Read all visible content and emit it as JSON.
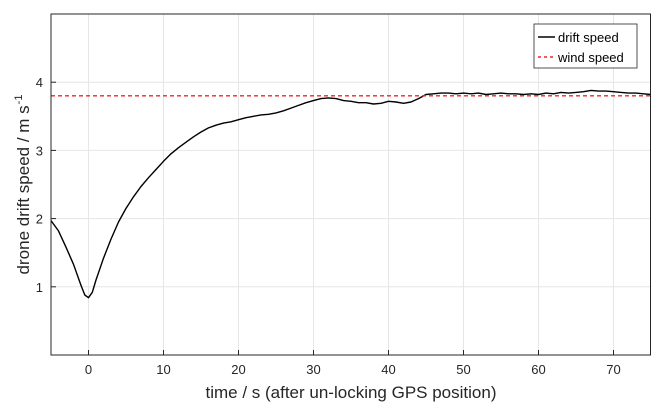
{
  "chart_data": {
    "type": "line",
    "title": "",
    "xlabel": "time / s (after un-locking GPS position)",
    "ylabel_main": "drone drift speed / m s",
    "ylabel_superscript": "-1",
    "xlim": [
      -5,
      75
    ],
    "ylim": [
      0,
      5
    ],
    "xticks": [
      0,
      10,
      20,
      30,
      40,
      50,
      60,
      70
    ],
    "yticks": [
      1,
      2,
      3,
      4
    ],
    "grid": true,
    "legend_position": "top-right",
    "series": [
      {
        "name": "drift speed",
        "color": "#000000",
        "style": "solid",
        "x": [
          -5,
          -4,
          -3,
          -2,
          -1,
          -0.5,
          0,
          0.5,
          1,
          2,
          3,
          4,
          5,
          6,
          7,
          8,
          9,
          10,
          11,
          12,
          13,
          14,
          15,
          16,
          17,
          18,
          19,
          20,
          21,
          22,
          23,
          24,
          25,
          26,
          27,
          28,
          29,
          30,
          31,
          32,
          33,
          34,
          35,
          36,
          37,
          38,
          39,
          40,
          41,
          42,
          43,
          44,
          45,
          46,
          47,
          48,
          49,
          50,
          51,
          52,
          53,
          54,
          55,
          56,
          57,
          58,
          59,
          60,
          61,
          62,
          63,
          64,
          65,
          66,
          67,
          68,
          69,
          70,
          71,
          72,
          73,
          74,
          75
        ],
        "values": [
          1.97,
          1.82,
          1.58,
          1.33,
          1.02,
          0.88,
          0.84,
          0.92,
          1.1,
          1.42,
          1.7,
          1.95,
          2.15,
          2.32,
          2.47,
          2.6,
          2.72,
          2.84,
          2.95,
          3.04,
          3.12,
          3.2,
          3.27,
          3.33,
          3.37,
          3.4,
          3.42,
          3.45,
          3.48,
          3.5,
          3.52,
          3.53,
          3.55,
          3.58,
          3.62,
          3.66,
          3.7,
          3.73,
          3.76,
          3.77,
          3.76,
          3.73,
          3.72,
          3.7,
          3.7,
          3.68,
          3.69,
          3.72,
          3.71,
          3.69,
          3.71,
          3.76,
          3.82,
          3.83,
          3.84,
          3.84,
          3.83,
          3.84,
          3.83,
          3.84,
          3.82,
          3.83,
          3.84,
          3.83,
          3.83,
          3.82,
          3.83,
          3.82,
          3.84,
          3.83,
          3.85,
          3.84,
          3.85,
          3.86,
          3.88,
          3.87,
          3.87,
          3.86,
          3.85,
          3.84,
          3.84,
          3.83,
          3.82
        ]
      },
      {
        "name": "wind speed",
        "color": "#e8262e",
        "style": "dashed",
        "x": [
          -5,
          75
        ],
        "values": [
          3.8,
          3.8
        ]
      }
    ]
  }
}
